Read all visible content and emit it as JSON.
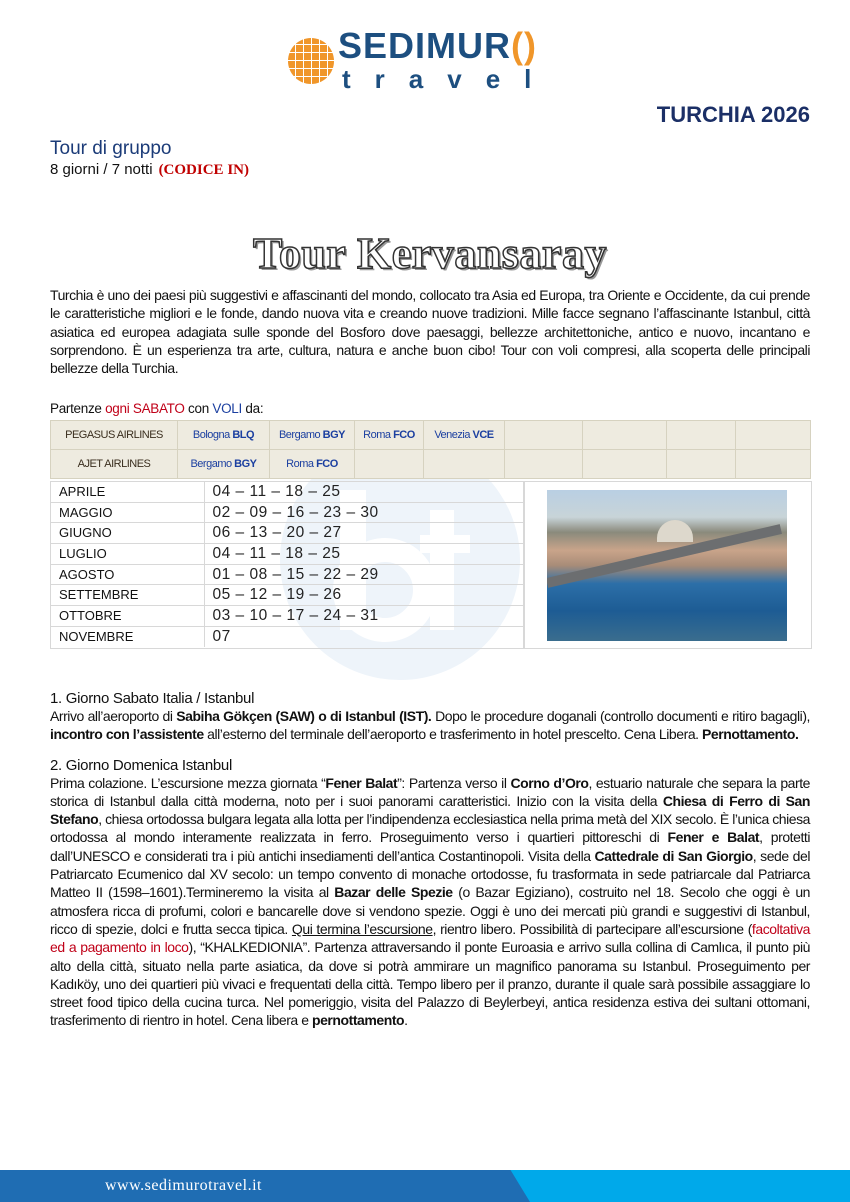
{
  "logo": {
    "name": "SEDIMUR",
    "name_accent": "()",
    "sub": "travel"
  },
  "header": {
    "country": "TURCHIA 2026",
    "tour_type": "Tour di gruppo",
    "duration": "8 giorni / 7 notti",
    "code": "(CODICE IN)"
  },
  "title": "Tour Kervansaray",
  "intro": "Turchia è uno dei paesi più suggestivi e affascinanti del mondo, collocato tra Asia ed Europa, tra Oriente e Occidente, da cui prende le caratteristiche migliori e le fonde, dando nuova vita e creando nuove tradizioni. Mille facce segnano l’affascinante Istanbul, città asiatica ed europea adagiata sulle sponde del Bosforo dove paesaggi, bellezze architettoniche, antico e nuovo, incantano e sorprendono. È un esperienza tra arte, cultura, natura e anche buon cibo! Tour con voli compresi, alla scoperta delle principali bellezze della Turchia.",
  "departures": {
    "p1": "Partenze ",
    "p2": "ogni SABATO",
    "p3": "  con ",
    "p4": "VOLI",
    "p5": " da:"
  },
  "airlines": [
    {
      "name": "PEGASUS AIRLINES",
      "airports": [
        {
          "city": "Bologna ",
          "code": "BLQ"
        },
        {
          "city": "Bergamo ",
          "code": "BGY"
        },
        {
          "city": "Roma ",
          "code": "FCO"
        },
        {
          "city": "Venezia ",
          "code": "VCE"
        }
      ]
    },
    {
      "name": "AJET AIRLINES",
      "airports": [
        {
          "city": "Bergamo ",
          "code": "BGY"
        },
        {
          "city": "Roma ",
          "code": "FCO"
        }
      ]
    }
  ],
  "months": [
    {
      "month": "APRILE",
      "dates": "04 – 11 – 18 – 25"
    },
    {
      "month": "MAGGIO",
      "dates": "02 – 09 – 16 – 23 – 30"
    },
    {
      "month": "GIUGNO",
      "dates": "06 – 13 – 20 – 27"
    },
    {
      "month": "LUGLIO",
      "dates": "04 – 11 – 18 – 25"
    },
    {
      "month": "AGOSTO",
      "dates": "01 – 08 – 15 – 22 – 29"
    },
    {
      "month": "SETTEMBRE",
      "dates": "05 – 12 – 19 – 26"
    },
    {
      "month": "OTTOBRE",
      "dates": "03 – 10 – 17 – 24 – 31"
    },
    {
      "month": "NOVEMBRE",
      "dates": "07"
    }
  ],
  "watermark": "bf",
  "days": [
    {
      "title": "1. Giorno Sabato  Italia / Istanbul",
      "parts": [
        "Arrivo all’aeroporto di ",
        "Sabiha Gökçen (SAW) o di Istanbul (IST).",
        " Dopo le procedure doganali (controllo documenti e ritiro bagagli), ",
        "incontro con l’assistente",
        " all’esterno del terminale dell’aeroporto e trasferimento in hotel prescelto. Cena Libera. ",
        "Pernottamento."
      ]
    },
    {
      "title": "2. Giorno Domenica Istanbul",
      "parts": [
        "Prima colazione. L’escursione mezza giornata “",
        "Fener Balat",
        "”: Partenza verso il ",
        "Corno d’Oro",
        ", estuario naturale che separa la parte storica di Istanbul dalla città moderna, noto per i suoi panorami caratteristici. Inizio con la visita della ",
        "Chiesa di Ferro di San Stefano",
        ", chiesa ortodossa bulgara legata alla lotta per l’indipendenza ecclesiastica nella prima metà del XIX secolo. È l’unica chiesa ortodossa al mondo interamente realizzata in ferro. Proseguimento verso i quartieri pittoreschi di ",
        "Fener e Balat",
        ", protetti dall’UNESCO e considerati tra i più antichi insediamenti dell’antica Costantinopoli. Visita della ",
        "Cattedrale di San Giorgio",
        ", sede del Patriarcato Ecumenico dal XV secolo: un tempo convento di monache ortodosse, fu trasformata in sede patriarcale dal Patriarca Matteo II (1598–1601).Termineremo la visita al ",
        "Bazar delle Spezie",
        " (o Bazar Egiziano), costruito nel 18. Secolo che oggi è un atmosfera ricca di profumi, colori e bancarelle dove si vendono spezie. Oggi è uno dei mercati più grandi e suggestivi di Istanbul, ricco di spezie, dolci e frutta secca tipica. ",
        "Qui termina l’escursione",
        ", rientro libero. Possibilità di partecipare all’escursione (",
        "facoltativa ed a pagamento in loco",
        "), “KHALKEDIONIA”. Partenza attraversando il ponte Euroasia e arrivo sulla collina di Camlıca, il punto più alto della città, situato nella parte asiatica, da dove si potrà ammirare un magnifico panorama su Istanbul. Proseguimento per Kadıköy, uno dei quartieri più vivaci e frequentati della città. Tempo libero per il pranzo, durante il quale sarà possibile assaggiare lo street food tipico della cucina turca. Nel pomeriggio, visita del Palazzo di Beylerbeyi, antica residenza estiva dei sultani ottomani, trasferimento di rientro in hotel. Cena libera e ",
        "pernottamento",
        "."
      ]
    }
  ],
  "footer": {
    "url": "www.sedimurotravel.it"
  }
}
